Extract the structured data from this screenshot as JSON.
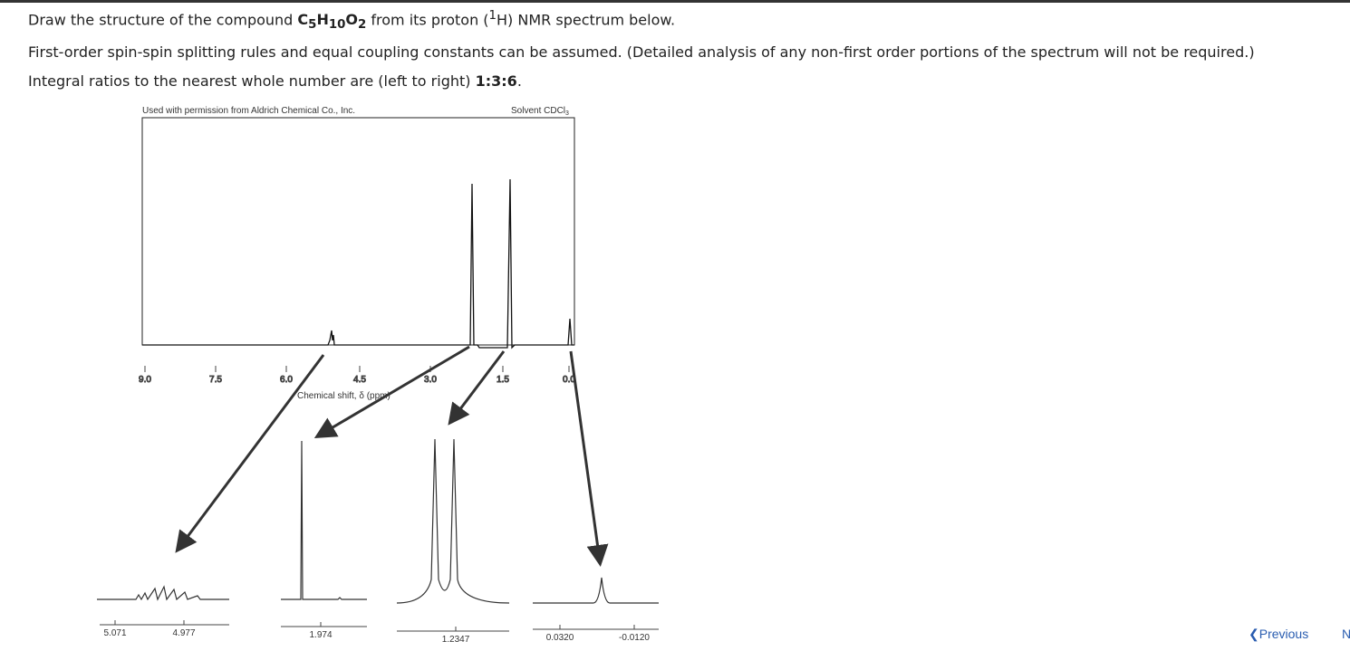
{
  "question": {
    "line1": {
      "before": "Draw the structure of the compound ",
      "formula": [
        "C",
        "5",
        "H",
        "10",
        "O",
        "2"
      ],
      "middle": " from its proton (",
      "isotope": "1",
      "after": "H) NMR spectrum below."
    },
    "line2": "First-order spin-spin splitting rules and equal coupling constants can be assumed. (Detailed analysis of any non-first order portions of the spectrum will not be required.)",
    "line3": {
      "before": "Integral ratios to the nearest whole number are (left to right) ",
      "ratio": "1:3:6",
      "after": "."
    }
  },
  "figure": {
    "credit": "Used with permission from Aldrich Chemical Co., Inc.",
    "solvent": [
      "Solvent CDCl",
      "3"
    ],
    "axis_labels": [
      "9.0",
      "7.5",
      "6.0",
      "4.5",
      "3.0",
      "1.5",
      "0.0"
    ],
    "axis_title": "Chemical shift, δ (ppm)",
    "insets": [
      [
        "5.071",
        "4.977"
      ],
      [
        "1.974"
      ],
      [
        "1.2347"
      ],
      [
        "0.0320",
        "-0.0120"
      ]
    ]
  },
  "nav": {
    "previous": "Previous",
    "next": "N"
  }
}
